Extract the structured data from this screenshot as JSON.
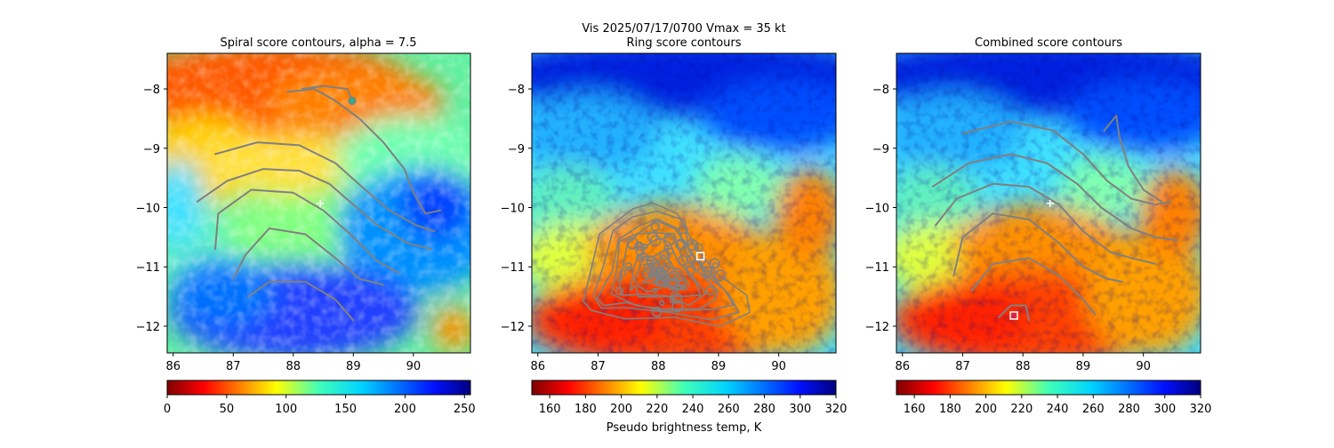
{
  "figure": {
    "suptitle_line1": "Vis  2025/07/17/0700    Vmax = 35 kt"
  },
  "chart_data": [
    {
      "type": "heatmap",
      "title": "Spiral score contours, alpha =  7.5",
      "xlim": [
        85.9,
        90.95
      ],
      "ylim": [
        -12.45,
        -7.4
      ],
      "xticks": [
        "86",
        "87",
        "88",
        "89",
        "90"
      ],
      "yticks": [
        "−8",
        "−9",
        "−10",
        "−11",
        "−12"
      ],
      "colorbar": {
        "range": [
          0,
          255
        ],
        "ticks": [
          "0",
          "50",
          "100",
          "150",
          "200",
          "250"
        ],
        "label": ""
      },
      "markers": [
        {
          "kind": "plus",
          "x": 88.45,
          "y": -9.93,
          "color": "#ffffff"
        },
        {
          "kind": "circle",
          "x": 88.98,
          "y": -8.2,
          "color": "#33aa88"
        }
      ],
      "contours": [
        [
          [
            86.4,
            -9.9
          ],
          [
            86.9,
            -9.55
          ],
          [
            87.5,
            -9.35
          ],
          [
            88.1,
            -9.38
          ],
          [
            88.6,
            -9.6
          ],
          [
            89.0,
            -9.95
          ],
          [
            89.4,
            -10.3
          ],
          [
            89.9,
            -10.6
          ],
          [
            90.3,
            -10.7
          ]
        ],
        [
          [
            86.7,
            -9.1
          ],
          [
            87.4,
            -8.9
          ],
          [
            88.1,
            -8.95
          ],
          [
            88.7,
            -9.25
          ],
          [
            89.2,
            -9.7
          ],
          [
            89.6,
            -10.05
          ],
          [
            90.05,
            -10.3
          ],
          [
            90.35,
            -10.4
          ]
        ],
        [
          [
            86.7,
            -10.7
          ],
          [
            86.75,
            -10.1
          ],
          [
            87.3,
            -9.7
          ],
          [
            88.0,
            -9.75
          ],
          [
            88.5,
            -10.05
          ],
          [
            88.95,
            -10.45
          ],
          [
            89.4,
            -10.9
          ],
          [
            89.75,
            -11.1
          ]
        ],
        [
          [
            87.0,
            -11.2
          ],
          [
            87.2,
            -10.8
          ],
          [
            87.6,
            -10.35
          ],
          [
            88.2,
            -10.45
          ],
          [
            88.7,
            -10.85
          ],
          [
            89.1,
            -11.2
          ],
          [
            89.5,
            -11.3
          ]
        ],
        [
          [
            87.25,
            -11.5
          ],
          [
            87.6,
            -11.25
          ],
          [
            88.2,
            -11.25
          ],
          [
            88.7,
            -11.55
          ],
          [
            89.0,
            -11.9
          ]
        ],
        [
          [
            87.9,
            -8.05
          ],
          [
            88.35,
            -8.0
          ],
          [
            88.7,
            -8.2
          ],
          [
            89.1,
            -8.5
          ],
          [
            89.5,
            -8.9
          ],
          [
            89.85,
            -9.35
          ],
          [
            90.0,
            -9.75
          ],
          [
            90.2,
            -10.1
          ],
          [
            90.45,
            -10.05
          ]
        ],
        [
          [
            88.15,
            -8.0
          ],
          [
            88.5,
            -7.95
          ],
          [
            88.9,
            -8.0
          ],
          [
            88.98,
            -8.2
          ]
        ]
      ]
    },
    {
      "type": "heatmap",
      "title": "Ring score contours",
      "xlim": [
        85.9,
        90.95
      ],
      "ylim": [
        -12.45,
        -7.4
      ],
      "xticks": [
        "86",
        "87",
        "88",
        "89",
        "90"
      ],
      "yticks": [
        "−8",
        "−9",
        "−10",
        "−11",
        "−12"
      ],
      "colorbar": {
        "range": [
          150,
          320
        ],
        "ticks": [
          "160",
          "180",
          "200",
          "220",
          "240",
          "260",
          "280",
          "300",
          "320"
        ],
        "label": "Pseudo brightness temp, K"
      },
      "markers": [
        {
          "kind": "square",
          "x": 88.7,
          "y": -10.82,
          "color": "#ffffff"
        }
      ],
      "contour_region": [
        [
          86.7,
          -11.6
        ],
        [
          86.9,
          -11.0
        ],
        [
          87.1,
          -10.4
        ],
        [
          87.5,
          -10.0
        ],
        [
          88.0,
          -9.85
        ],
        [
          88.4,
          -10.05
        ],
        [
          88.6,
          -10.6
        ],
        [
          89.0,
          -11.1
        ],
        [
          89.4,
          -11.5
        ],
        [
          89.5,
          -11.85
        ],
        [
          89.0,
          -11.95
        ],
        [
          88.2,
          -11.9
        ],
        [
          87.4,
          -11.85
        ],
        [
          86.9,
          -11.75
        ]
      ]
    },
    {
      "type": "heatmap",
      "title": "Combined score contours",
      "xlim": [
        85.9,
        90.95
      ],
      "ylim": [
        -12.45,
        -7.4
      ],
      "xticks": [
        "86",
        "87",
        "88",
        "89",
        "90"
      ],
      "yticks": [
        "−8",
        "−9",
        "−10",
        "−11",
        "−12"
      ],
      "colorbar": {
        "range": [
          150,
          320
        ],
        "ticks": [
          "160",
          "180",
          "200",
          "220",
          "240",
          "260",
          "280",
          "300",
          "320"
        ],
        "label": ""
      },
      "markers": [
        {
          "kind": "plus",
          "x": 88.45,
          "y": -9.93,
          "color": "#ffffff"
        },
        {
          "kind": "square",
          "x": 87.85,
          "y": -11.82,
          "color": "#ffffff"
        },
        {
          "kind": "dot",
          "x": 87.85,
          "y": -11.82,
          "color": "#cc2266"
        }
      ],
      "contours": [
        [
          [
            86.5,
            -9.65
          ],
          [
            87.1,
            -9.25
          ],
          [
            87.8,
            -9.1
          ],
          [
            88.4,
            -9.25
          ],
          [
            88.9,
            -9.6
          ],
          [
            89.3,
            -10.0
          ],
          [
            89.8,
            -10.35
          ],
          [
            90.2,
            -10.5
          ],
          [
            90.55,
            -10.55
          ]
        ],
        [
          [
            87.0,
            -8.75
          ],
          [
            87.8,
            -8.55
          ],
          [
            88.5,
            -8.7
          ],
          [
            89.0,
            -9.1
          ],
          [
            89.4,
            -9.55
          ],
          [
            89.8,
            -9.85
          ],
          [
            90.2,
            -9.95
          ],
          [
            90.45,
            -9.9
          ]
        ],
        [
          [
            86.55,
            -10.3
          ],
          [
            86.9,
            -9.85
          ],
          [
            87.5,
            -9.6
          ],
          [
            88.1,
            -9.65
          ],
          [
            88.6,
            -9.95
          ],
          [
            89.0,
            -10.4
          ],
          [
            89.45,
            -10.75
          ],
          [
            89.8,
            -10.85
          ],
          [
            90.2,
            -10.95
          ]
        ],
        [
          [
            86.85,
            -11.15
          ],
          [
            87.0,
            -10.5
          ],
          [
            87.5,
            -10.1
          ],
          [
            88.1,
            -10.2
          ],
          [
            88.6,
            -10.6
          ],
          [
            89.0,
            -11.0
          ],
          [
            89.4,
            -11.2
          ],
          [
            89.65,
            -11.25
          ]
        ],
        [
          [
            87.15,
            -11.4
          ],
          [
            87.5,
            -10.95
          ],
          [
            88.1,
            -10.85
          ],
          [
            88.6,
            -11.15
          ],
          [
            89.0,
            -11.55
          ],
          [
            89.2,
            -11.8
          ]
        ],
        [
          [
            89.35,
            -8.7
          ],
          [
            89.55,
            -8.45
          ],
          [
            89.6,
            -8.8
          ],
          [
            89.75,
            -9.3
          ],
          [
            90.0,
            -9.7
          ],
          [
            90.3,
            -9.9
          ]
        ],
        [
          [
            87.6,
            -11.85
          ],
          [
            87.8,
            -11.65
          ],
          [
            88.05,
            -11.65
          ],
          [
            88.1,
            -11.9
          ]
        ]
      ]
    }
  ]
}
